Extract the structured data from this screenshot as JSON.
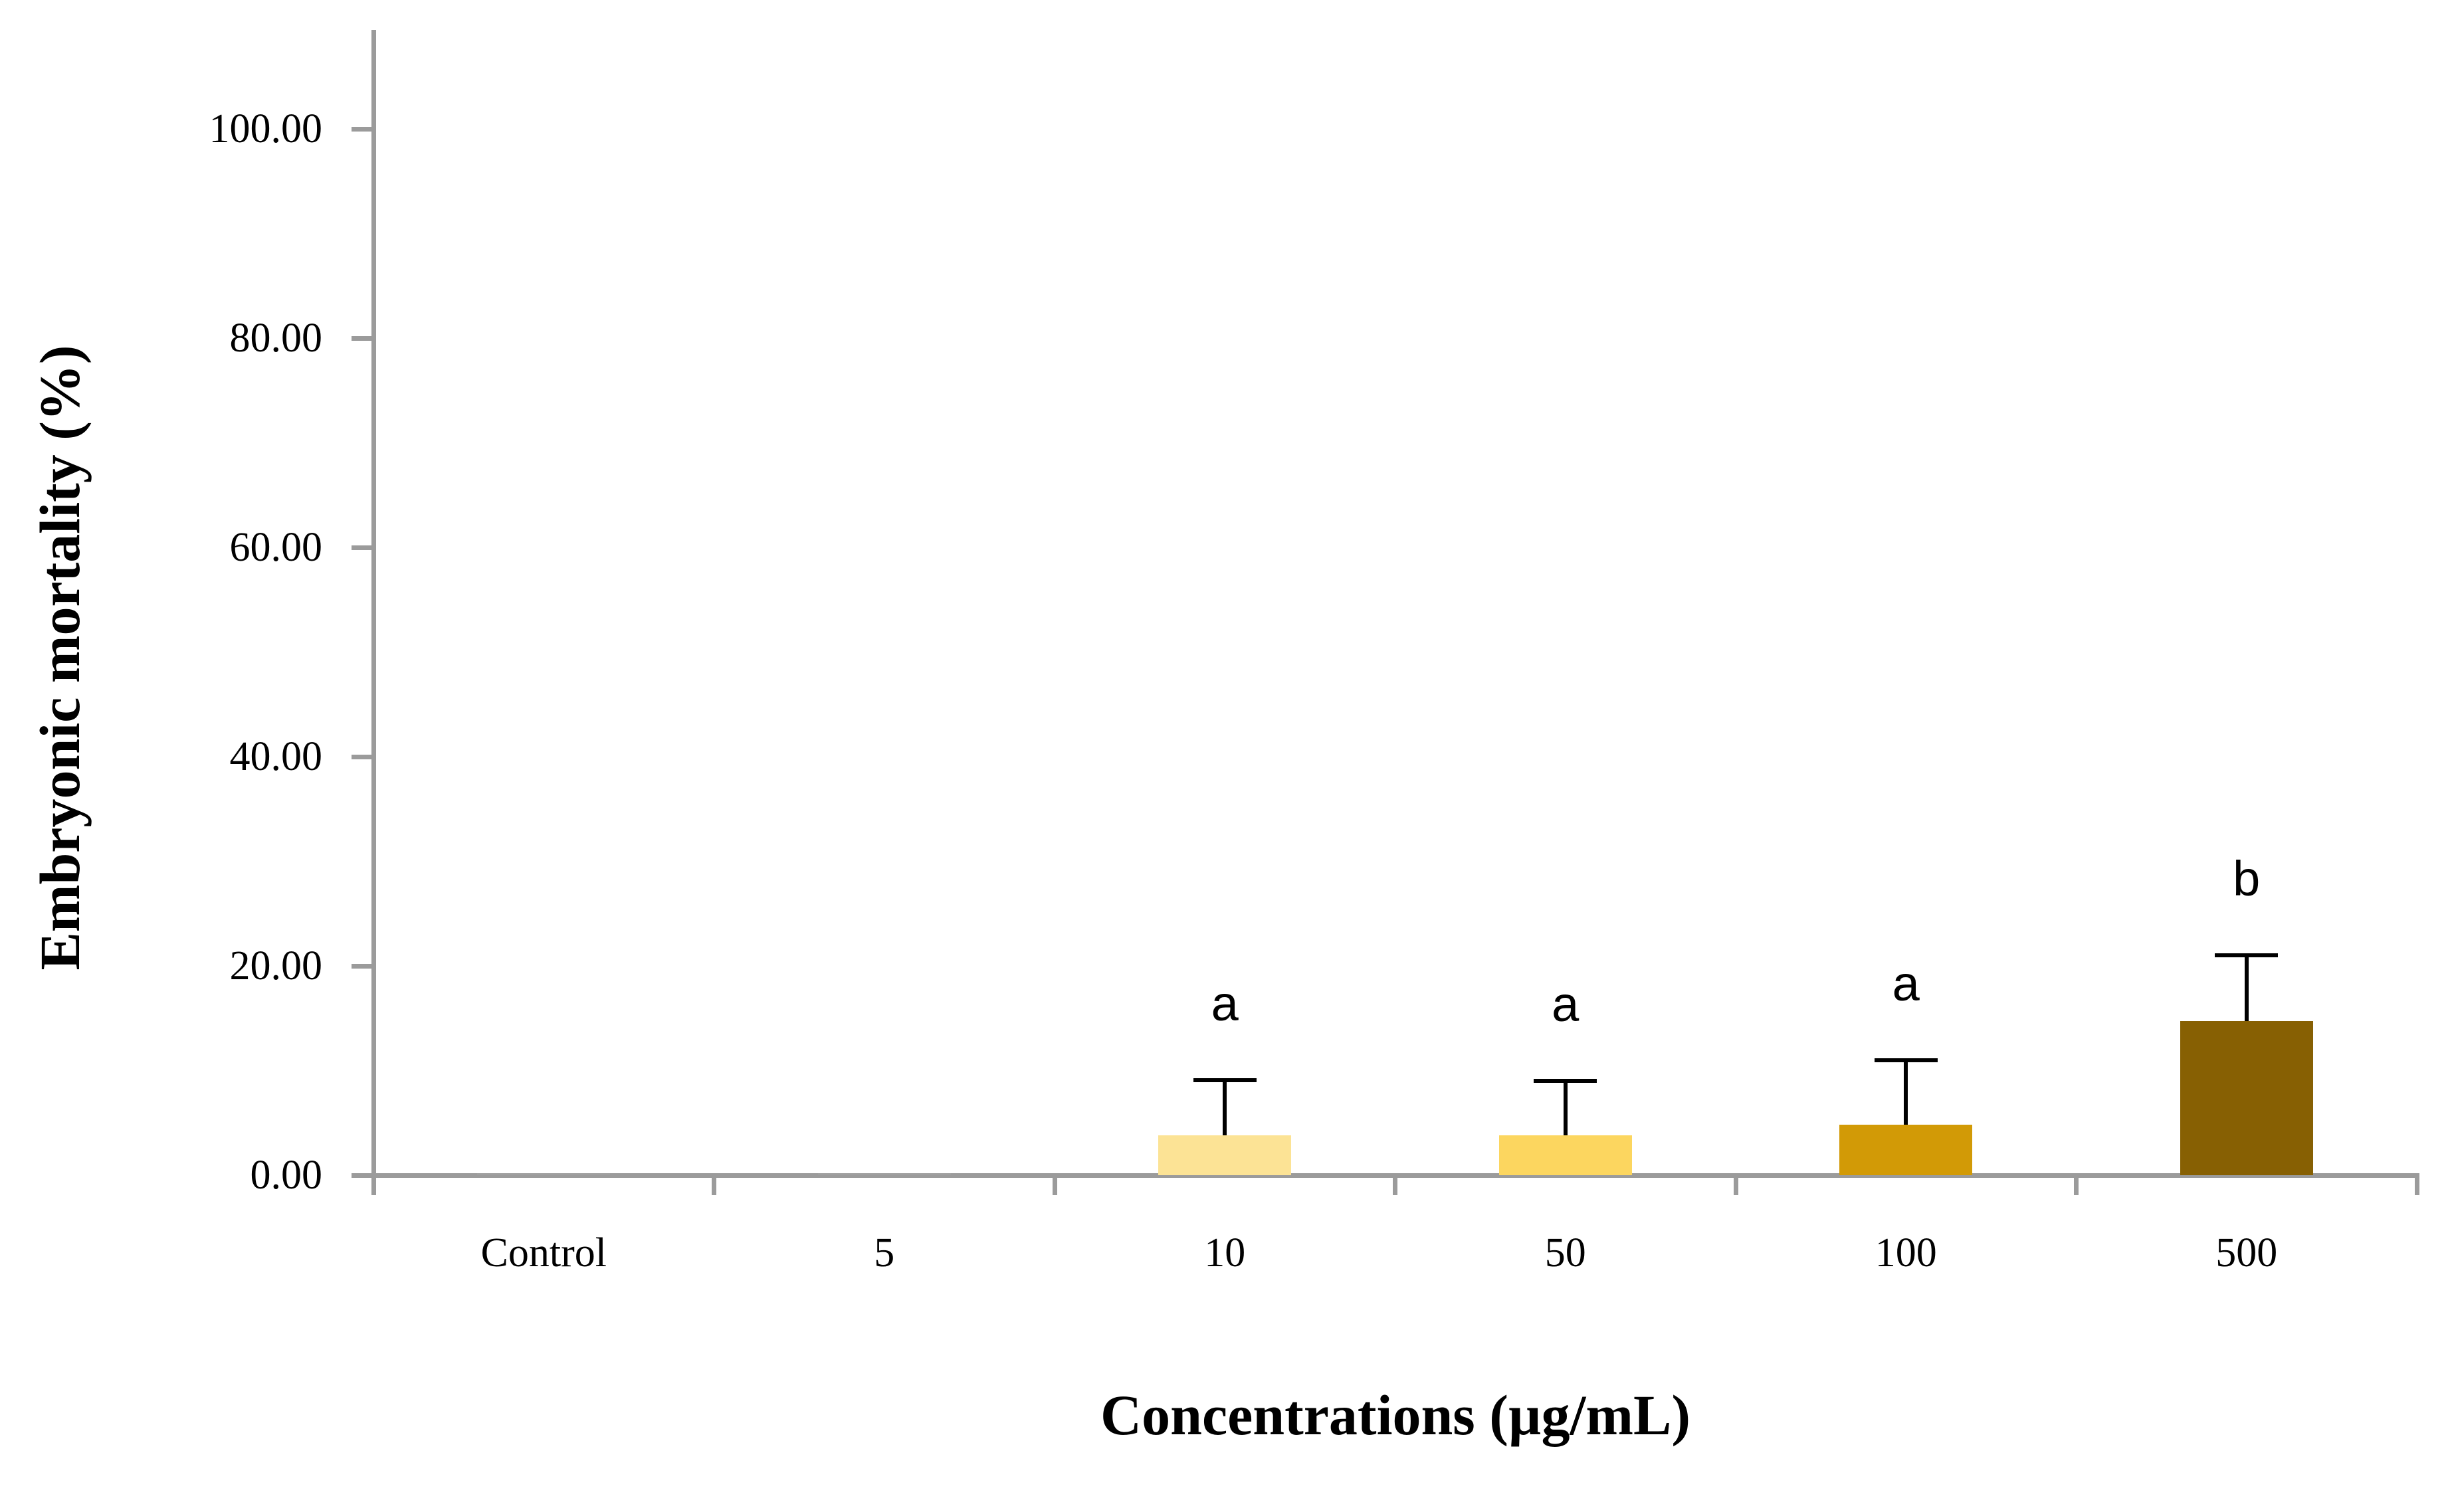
{
  "chart_data": {
    "type": "bar",
    "title": "",
    "xlabel": "Concentrations (µg/mL)",
    "ylabel": "Embryonic mortality (%)",
    "categories": [
      "Control",
      "5",
      "10",
      "50",
      "100",
      "500"
    ],
    "values": [
      0.1,
      0.1,
      3.8,
      3.8,
      4.8,
      14.7
    ],
    "error_up_sd": [
      null,
      null,
      5.3,
      5.2,
      6.2,
      6.3
    ],
    "error_bar_tops": [
      null,
      null,
      9.1,
      9.0,
      11.0,
      21.0
    ],
    "sig_letters": [
      "",
      "",
      "a",
      "a",
      "a",
      "b"
    ],
    "bar_colors": [
      "#9f9f9f",
      "#9f9f9f",
      "#fce395",
      "#fcd65f",
      "#d29a06",
      "#876003"
    ],
    "y_tick_labels": [
      "0.00",
      "20.00",
      "40.00",
      "60.00",
      "80.00",
      "100.00"
    ],
    "y_tick_values": [
      0,
      20,
      40,
      60,
      80,
      100
    ],
    "ylim": [
      0,
      110
    ],
    "grid": false,
    "legend_position": "none",
    "axis_color": "#9b9b9b",
    "error_bar_color": "#000000",
    "text_color": "#000000"
  }
}
